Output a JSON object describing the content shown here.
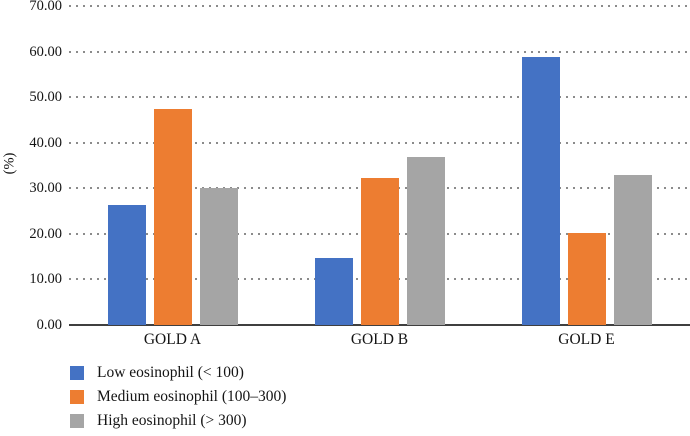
{
  "figure": {
    "background": "#ffffff",
    "axis_color": "#3f3f3f",
    "gridline_color": "#8b8b8b",
    "text_color": "#141414"
  },
  "chart_data": {
    "type": "bar",
    "title": "",
    "xlabel": "",
    "ylabel": "(%)",
    "categories": [
      "GOLD A",
      "GOLD B",
      "GOLD E"
    ],
    "series": [
      {
        "name": "Low eosinophil (< 100)",
        "color": "#4472C4",
        "values": [
          26.4,
          14.6,
          58.8
        ]
      },
      {
        "name": "Medium eosinophil (100–300)",
        "color": "#ED7D31",
        "values": [
          47.5,
          32.3,
          20.2
        ]
      },
      {
        "name": "High eosinophil (> 300)",
        "color": "#A5A5A5",
        "values": [
          30.1,
          36.9,
          33.0
        ]
      }
    ],
    "ylim": [
      0,
      70
    ],
    "yticks": [
      0,
      10,
      20,
      30,
      40,
      50,
      60,
      70
    ],
    "ytick_labels": [
      "0.00",
      "10.00",
      "20.00",
      "30.00",
      "40.00",
      "50.00",
      "60.00",
      "70.00"
    ],
    "grid": "horizontal dotted",
    "legend_position": "bottom-left"
  }
}
